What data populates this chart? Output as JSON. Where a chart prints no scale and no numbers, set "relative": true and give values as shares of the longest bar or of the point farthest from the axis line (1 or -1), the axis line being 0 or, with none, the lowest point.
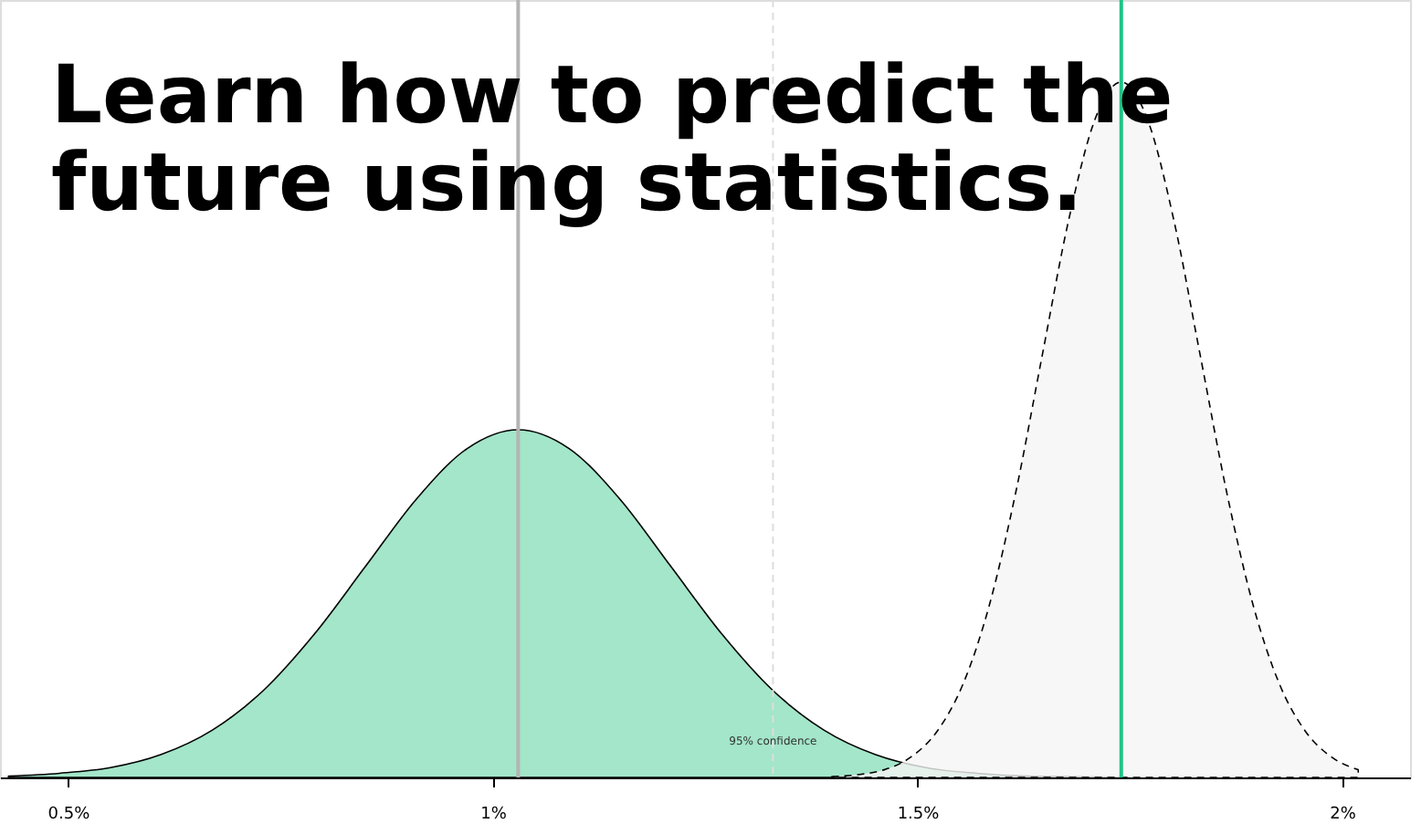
{
  "chart_data": {
    "type": "area",
    "title": "Learn how to predict the\nfuture using statistics.",
    "relative": true,
    "series": [
      {
        "x": [
          0.43,
          0.49,
          0.55,
          0.61,
          0.67,
          0.73,
          0.79,
          0.85,
          0.91,
          0.97,
          1.03,
          1.09,
          1.15,
          1.21,
          1.27,
          1.33,
          1.39,
          1.45,
          1.51,
          1.57,
          1.63,
          1.69,
          1.75
        ],
        "values": [
          0.002,
          0.006,
          0.014,
          0.033,
          0.068,
          0.125,
          0.206,
          0.303,
          0.4,
          0.473,
          0.5,
          0.473,
          0.4,
          0.303,
          0.206,
          0.125,
          0.068,
          0.033,
          0.014,
          0.006,
          0.002,
          0.001,
          0
        ],
        "color": "#8ce0bb",
        "line_style": "solid"
      },
      {
        "x": [
          1.399,
          1.43,
          1.461,
          1.492,
          1.523,
          1.554,
          1.585,
          1.616,
          1.647,
          1.678,
          1.709,
          1.74,
          1.771,
          1.802,
          1.833,
          1.864,
          1.895,
          1.926,
          1.957,
          1.988,
          2.019
        ],
        "values": [
          0.001,
          0.004,
          0.011,
          0.029,
          0.066,
          0.135,
          0.249,
          0.411,
          0.607,
          0.801,
          0.946,
          1,
          0.946,
          0.801,
          0.607,
          0.411,
          0.249,
          0.135,
          0.066,
          0.029,
          0.011
        ],
        "color": "#f5f5f5",
        "line_style": "dashed"
      }
    ],
    "xlim": [
      0.42,
      2.08
    ],
    "xticks": [
      {
        "value": 0.5,
        "label": "0.5%"
      },
      {
        "value": 1,
        "label": "1%"
      },
      {
        "value": 1.5,
        "label": "1.5%"
      },
      {
        "value": 2,
        "label": "2%"
      }
    ],
    "ref_lines": [
      {
        "axis": "x",
        "value": 1.03,
        "label": null,
        "color": "#b4b4b4",
        "line_style": "solid"
      },
      {
        "axis": "x",
        "value": 1.33,
        "label": "95% confidence",
        "color": "#dddddd",
        "line_style": "dashed"
      },
      {
        "axis": "x",
        "value": 1.74,
        "label": null,
        "color": "#1ec487",
        "line_style": "solid"
      }
    ],
    "tick_labels": "x",
    "grid": false
  }
}
